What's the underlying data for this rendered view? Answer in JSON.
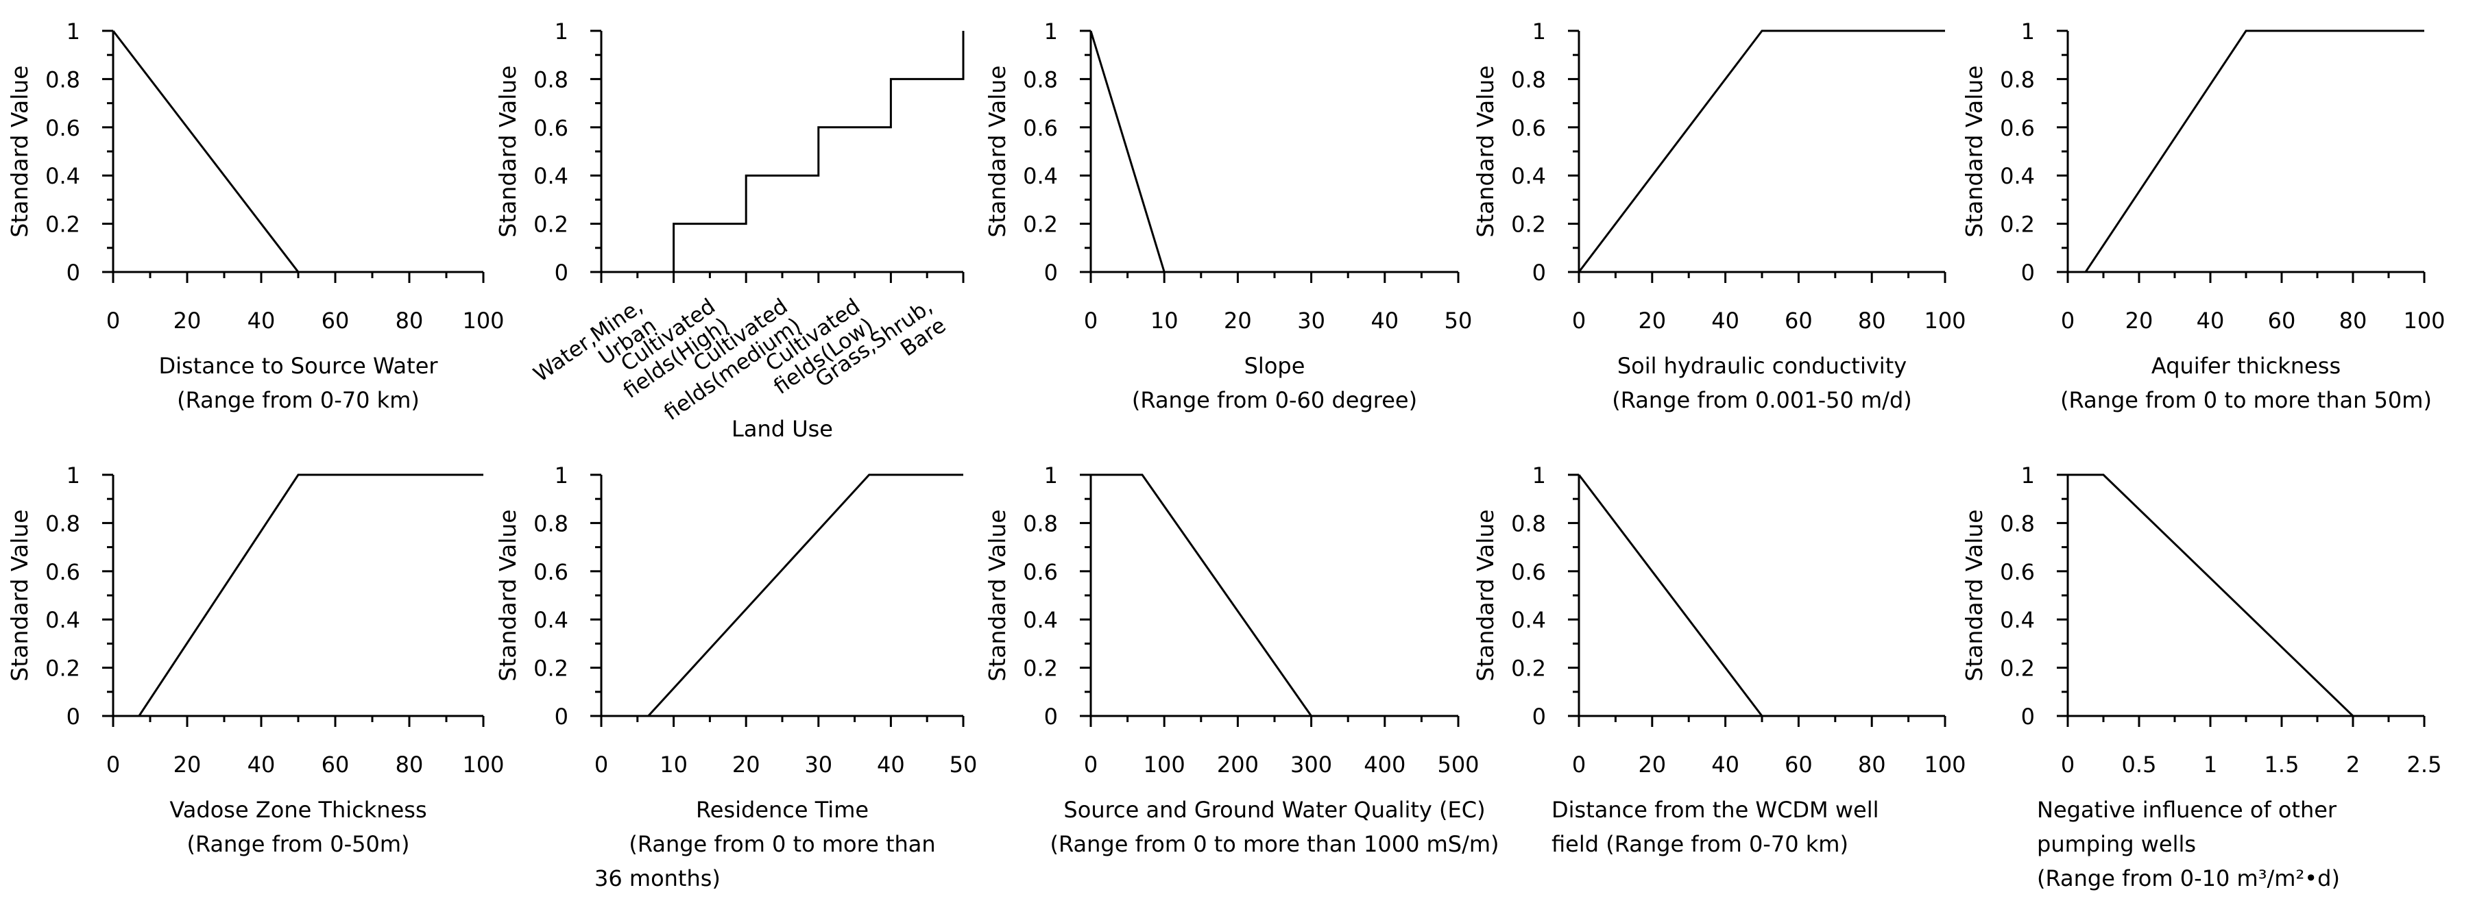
{
  "colors": {
    "background": "#ffffff",
    "ink": "#000000"
  },
  "chart_data": [
    {
      "type": "line",
      "ylabel": "Standard Value",
      "xlabel_lines": [
        "Distance to Source Water",
        "(Range from 0-70 km)"
      ],
      "xlim": [
        0,
        100
      ],
      "xticks": [
        0,
        20,
        40,
        60,
        80,
        100
      ],
      "xtick_labels": [
        "0",
        "20",
        "40",
        "60",
        "80",
        "100"
      ],
      "ylim": [
        0,
        1
      ],
      "yticks": [
        0,
        0.2,
        0.4,
        0.6,
        0.8,
        1
      ],
      "ytick_labels": [
        "0",
        "0.2",
        "0.4",
        "0.6",
        "0.8",
        "1"
      ],
      "x": [
        0,
        50,
        100
      ],
      "y": [
        1,
        0,
        0
      ]
    },
    {
      "type": "line",
      "ylabel": "Standard Value",
      "xlabel_lines": [
        "Land Use"
      ],
      "categories": [
        "Water,Mine, Urban",
        "Cultivated fields(High)",
        "Cultivated fields(medium)",
        "Cultivated fields(Low)",
        "Grass,Shrub, Bare"
      ],
      "xlim": [
        0,
        5
      ],
      "xticks": [
        0,
        1,
        2,
        3,
        4,
        5
      ],
      "ylim": [
        0,
        1
      ],
      "yticks": [
        0,
        0.2,
        0.4,
        0.6,
        0.8,
        1
      ],
      "ytick_labels": [
        "0",
        "0.2",
        "0.4",
        "0.6",
        "0.8",
        "1"
      ],
      "x": [
        0,
        1,
        1,
        2,
        2,
        3,
        3,
        4,
        4,
        5,
        5
      ],
      "y": [
        0,
        0,
        0.2,
        0.2,
        0.4,
        0.4,
        0.6,
        0.6,
        0.8,
        0.8,
        1
      ]
    },
    {
      "type": "line",
      "ylabel": "Standard Value",
      "xlabel_lines": [
        "Slope",
        "(Range from 0-60 degree)"
      ],
      "xlim": [
        0,
        50
      ],
      "xticks": [
        0,
        10,
        20,
        30,
        40,
        50
      ],
      "xtick_labels": [
        "0",
        "10",
        "20",
        "30",
        "40",
        "50"
      ],
      "ylim": [
        0,
        1
      ],
      "yticks": [
        0,
        0.2,
        0.4,
        0.6,
        0.8,
        1
      ],
      "ytick_labels": [
        "0",
        "0.2",
        "0.4",
        "0.6",
        "0.8",
        "1"
      ],
      "x": [
        0,
        10,
        50
      ],
      "y": [
        1,
        0,
        0
      ]
    },
    {
      "type": "line",
      "ylabel": "Standard Value",
      "xlabel_lines": [
        "Soil hydraulic conductivity",
        "(Range from 0.001-50 m/d)"
      ],
      "xlim": [
        0,
        100
      ],
      "xticks": [
        0,
        20,
        40,
        60,
        80,
        100
      ],
      "xtick_labels": [
        "0",
        "20",
        "40",
        "60",
        "80",
        "100"
      ],
      "ylim": [
        0,
        1
      ],
      "yticks": [
        0,
        0.2,
        0.4,
        0.6,
        0.8,
        1
      ],
      "ytick_labels": [
        "0",
        "0.2",
        "0.4",
        "0.6",
        "0.8",
        "1"
      ],
      "x": [
        0,
        50,
        100
      ],
      "y": [
        0,
        1,
        1
      ]
    },
    {
      "type": "line",
      "ylabel": "Standard Value",
      "xlabel_lines": [
        "Aquifer thickness",
        "(Range from 0 to more than 50m)"
      ],
      "xlim": [
        0,
        100
      ],
      "xticks": [
        0,
        20,
        40,
        60,
        80,
        100
      ],
      "xtick_labels": [
        "0",
        "20",
        "40",
        "60",
        "80",
        "100"
      ],
      "ylim": [
        0,
        1
      ],
      "yticks": [
        0,
        0.2,
        0.4,
        0.6,
        0.8,
        1
      ],
      "ytick_labels": [
        "0",
        "0.2",
        "0.4",
        "0.6",
        "0.8",
        "1"
      ],
      "x": [
        5,
        50,
        100
      ],
      "y": [
        0,
        1,
        1
      ]
    },
    {
      "type": "line",
      "ylabel": "Standard Value",
      "xlabel_lines": [
        "Vadose Zone Thickness",
        "(Range from 0-50m)"
      ],
      "xlim": [
        0,
        100
      ],
      "xticks": [
        0,
        20,
        40,
        60,
        80,
        100
      ],
      "xtick_labels": [
        "0",
        "20",
        "40",
        "60",
        "80",
        "100"
      ],
      "ylim": [
        0,
        1
      ],
      "yticks": [
        0,
        0.2,
        0.4,
        0.6,
        0.8,
        1
      ],
      "ytick_labels": [
        "0",
        "0.2",
        "0.4",
        "0.6",
        "0.8",
        "1"
      ],
      "x": [
        7,
        50,
        100
      ],
      "y": [
        0,
        1,
        1
      ]
    },
    {
      "type": "line",
      "ylabel": "Standard Value",
      "xlabel_lines": [
        "Residence Time",
        "(Range from 0 to more than",
        "36 months)"
      ],
      "xlim": [
        0,
        50
      ],
      "xticks": [
        0,
        10,
        20,
        30,
        40,
        50
      ],
      "xtick_labels": [
        "0",
        "10",
        "20",
        "30",
        "40",
        "50"
      ],
      "ylim": [
        0,
        1
      ],
      "yticks": [
        0,
        0.2,
        0.4,
        0.6,
        0.8,
        1
      ],
      "ytick_labels": [
        "0",
        "0.2",
        "0.4",
        "0.6",
        "0.8",
        "1"
      ],
      "x": [
        6.5,
        37,
        50
      ],
      "y": [
        0,
        1,
        1
      ]
    },
    {
      "type": "line",
      "ylabel": "Standard Value",
      "xlabel_lines": [
        "Source and Ground Water Quality (EC)",
        "(Range from 0 to more than 1000 mS/m)"
      ],
      "xlim": [
        0,
        500
      ],
      "xticks": [
        0,
        100,
        200,
        300,
        400,
        500
      ],
      "xtick_labels": [
        "0",
        "100",
        "200",
        "300",
        "400",
        "500"
      ],
      "ylim": [
        0,
        1
      ],
      "yticks": [
        0,
        0.2,
        0.4,
        0.6,
        0.8,
        1
      ],
      "ytick_labels": [
        "0",
        "0.2",
        "0.4",
        "0.6",
        "0.8",
        "1"
      ],
      "x": [
        0,
        70,
        300,
        500
      ],
      "y": [
        1,
        1,
        0,
        0
      ]
    },
    {
      "type": "line",
      "ylabel": "Standard Value",
      "xlabel_lines": [
        "Distance from the WCDM well",
        "field    (Range from 0-70 km)"
      ],
      "xlim": [
        0,
        100
      ],
      "xticks": [
        0,
        20,
        40,
        60,
        80,
        100
      ],
      "xtick_labels": [
        "0",
        "20",
        "40",
        "60",
        "80",
        "100"
      ],
      "ylim": [
        0,
        1
      ],
      "yticks": [
        0,
        0.2,
        0.4,
        0.6,
        0.8,
        1
      ],
      "ytick_labels": [
        "0",
        "0.2",
        "0.4",
        "0.6",
        "0.8",
        "1"
      ],
      "x": [
        0,
        50,
        100
      ],
      "y": [
        1,
        0,
        0
      ]
    },
    {
      "type": "line",
      "ylabel": "Standard Value",
      "xlabel_lines": [
        "Negative influence of other",
        "pumping wells",
        "(Range from 0-10 m³/m²•d)"
      ],
      "xlim": [
        0,
        2.5
      ],
      "xticks": [
        0,
        0.5,
        1,
        1.5,
        2,
        2.5
      ],
      "xtick_labels": [
        "0",
        "0.5",
        "1",
        "1.5",
        "2",
        "2.5"
      ],
      "ylim": [
        0,
        1
      ],
      "yticks": [
        0,
        0.2,
        0.4,
        0.6,
        0.8,
        1
      ],
      "ytick_labels": [
        "0",
        "0.2",
        "0.4",
        "0.6",
        "0.8",
        "1"
      ],
      "x": [
        0,
        0.25,
        2,
        2.5
      ],
      "y": [
        1,
        1,
        0,
        0
      ]
    }
  ]
}
